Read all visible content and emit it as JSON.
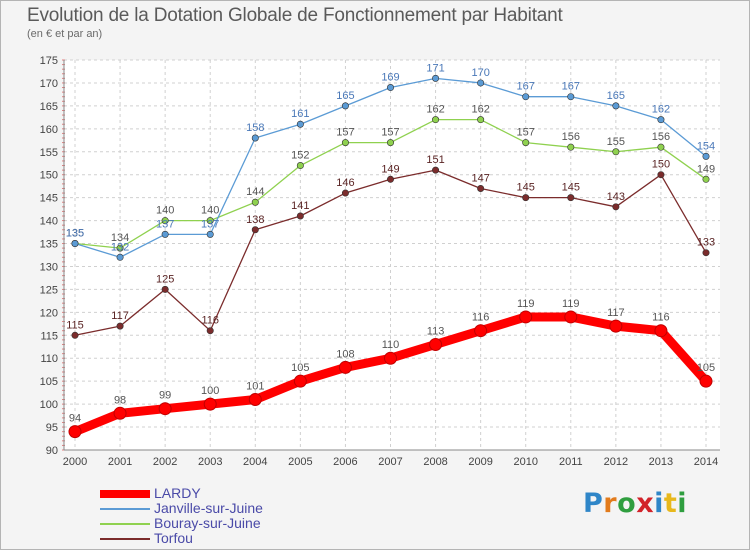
{
  "header": {
    "title": "Evolution de la Dotation Globale de Fonctionnement par Habitant",
    "subtitle": "(en € et par an)"
  },
  "logo": {
    "letters": [
      "P",
      "r",
      "o",
      "x",
      "i",
      "t",
      "i"
    ],
    "colors": [
      "#2f86c8",
      "#e27b1c",
      "#2f9e3f",
      "#d2232a",
      "#2f86c8",
      "#e8b81c",
      "#2f9e3f"
    ]
  },
  "chart_data": {
    "type": "line",
    "title": "Evolution de la Dotation Globale de Fonctionnement par Habitant",
    "subtitle": "(en € et par an)",
    "xlabel": "",
    "ylabel": "",
    "ylim": [
      90,
      175
    ],
    "y_ticks": [
      90,
      95,
      100,
      105,
      110,
      115,
      120,
      125,
      130,
      135,
      140,
      145,
      150,
      155,
      160,
      165,
      170,
      175
    ],
    "grid": true,
    "legend_position": "bottom-left",
    "x": [
      "2000",
      "2001",
      "2002",
      "2003",
      "2004",
      "2005",
      "2006",
      "2007",
      "2008",
      "2009",
      "2010",
      "2011",
      "2012",
      "2013",
      "2014"
    ],
    "series": [
      {
        "name": "LARDY",
        "color": "#ff0000",
        "values": [
          94,
          98,
          99,
          100,
          101,
          105,
          108,
          110,
          113,
          116,
          119,
          119,
          117,
          116,
          105
        ]
      },
      {
        "name": "Janville-sur-Juine",
        "color": "#5b9bd5",
        "values": [
          135,
          132,
          137,
          137,
          158,
          161,
          165,
          169,
          171,
          170,
          167,
          167,
          165,
          162,
          154
        ]
      },
      {
        "name": "Bouray-sur-Juine",
        "color": "#8fd14f",
        "values": [
          135,
          134,
          140,
          140,
          144,
          152,
          157,
          157,
          162,
          162,
          157,
          156,
          155,
          156,
          149
        ]
      },
      {
        "name": "Torfou",
        "color": "#7b2c2c",
        "values": [
          115,
          117,
          125,
          116,
          138,
          141,
          146,
          149,
          151,
          147,
          145,
          145,
          143,
          150,
          133
        ]
      }
    ]
  }
}
